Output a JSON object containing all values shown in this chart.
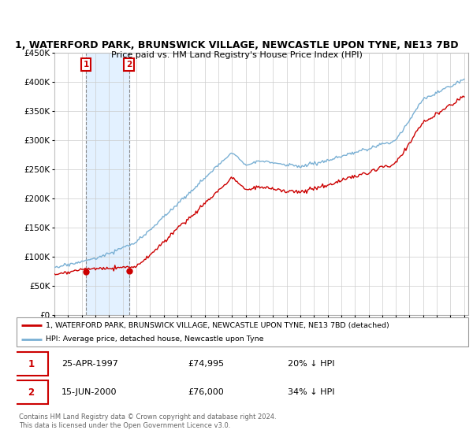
{
  "title_line1": "1, WATERFORD PARK, BRUNSWICK VILLAGE, NEWCASTLE UPON TYNE, NE13 7BD",
  "title_line2": "Price paid vs. HM Land Registry's House Price Index (HPI)",
  "ylim": [
    0,
    450000
  ],
  "yticks": [
    0,
    50000,
    100000,
    150000,
    200000,
    250000,
    300000,
    350000,
    400000,
    450000
  ],
  "ytick_labels": [
    "£0",
    "£50K",
    "£100K",
    "£150K",
    "£200K",
    "£250K",
    "£300K",
    "£350K",
    "£400K",
    "£450K"
  ],
  "purchase1_date": "25-APR-1997",
  "purchase1_price": 74995,
  "purchase1_label": "£74,995",
  "purchase1_hpi_pct": "20% ↓ HPI",
  "purchase1_year": 1997.32,
  "purchase2_date": "15-JUN-2000",
  "purchase2_price": 76000,
  "purchase2_label": "£76,000",
  "purchase2_hpi_pct": "34% ↓ HPI",
  "purchase2_year": 2000.46,
  "line_color_property": "#cc0000",
  "line_color_hpi": "#7ab0d4",
  "marker_color_property": "#cc0000",
  "shade_color": "#ddeeff",
  "vline_color": "#888888",
  "annotation_box_color": "#cc0000",
  "legend_label_property": "1, WATERFORD PARK, BRUNSWICK VILLAGE, NEWCASTLE UPON TYNE, NE13 7BD (detached)",
  "legend_label_hpi": "HPI: Average price, detached house, Newcastle upon Tyne",
  "footnote": "Contains HM Land Registry data © Crown copyright and database right 2024.\nThis data is licensed under the Open Government Licence v3.0.",
  "background_color": "#ffffff",
  "plot_bg_color": "#ffffff",
  "grid_color": "#cccccc",
  "xstart": 1995,
  "xend": 2025
}
